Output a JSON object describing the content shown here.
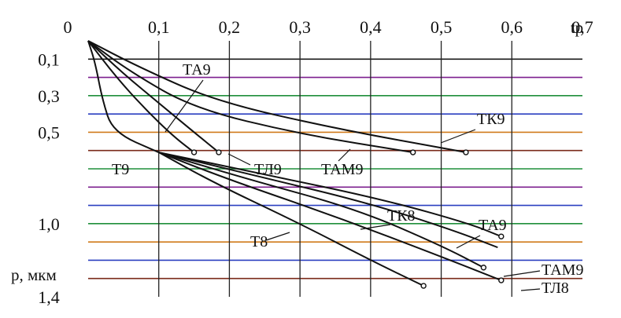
{
  "chart_data": {
    "type": "line",
    "title": "",
    "xlabel": "tp",
    "ylabel": "p, мкм",
    "x_axis_position": "top",
    "y_axis_inverted": true,
    "xlim": [
      0,
      0.7
    ],
    "ylim": [
      0,
      1.4
    ],
    "x_ticks": [
      {
        "value": 0,
        "label": "0"
      },
      {
        "value": 0.1,
        "label": "0,1"
      },
      {
        "value": 0.2,
        "label": "0,2"
      },
      {
        "value": 0.3,
        "label": "0,3"
      },
      {
        "value": 0.4,
        "label": "0,4"
      },
      {
        "value": 0.5,
        "label": "0,5"
      },
      {
        "value": 0.6,
        "label": "0,6"
      },
      {
        "value": 0.7,
        "label": "0,7"
      }
    ],
    "y_ticks": [
      {
        "value": 0.1,
        "label": "0,1"
      },
      {
        "value": 0.3,
        "label": "0,3"
      },
      {
        "value": 0.5,
        "label": "0,5"
      },
      {
        "value": 1.0,
        "label": "1,0"
      },
      {
        "value": 1.4,
        "label": "1,4"
      }
    ],
    "grid": {
      "vertical_at": [
        0.1,
        0.2,
        0.3,
        0.4,
        0.5,
        0.6
      ],
      "horizontal_at": [
        0.1,
        0.2,
        0.3,
        0.4,
        0.5,
        0.6,
        0.7,
        0.8,
        0.9,
        1.0,
        1.1,
        1.2,
        1.3
      ],
      "colors": [
        "#1a1a1a",
        "#7d1f8f",
        "#1f8f3a",
        "#2a3fc0",
        "#d07a1a",
        "#7a2a1a",
        "#1f8f3a",
        "#7d1f8f",
        "#2a3fc0",
        "#1f8f3a",
        "#d07a1a",
        "#2a3fc0",
        "#7a2a1a"
      ]
    },
    "series": [
      {
        "name": "Т9",
        "end_marker": false,
        "x": [
          0,
          0.01,
          0.02,
          0.035,
          0.1
        ],
        "y": [
          0,
          0.12,
          0.32,
          0.5,
          0.61
        ]
      },
      {
        "name": "ТА9",
        "end_marker": true,
        "x": [
          0,
          0.04,
          0.08,
          0.12,
          0.15
        ],
        "y": [
          0,
          0.2,
          0.37,
          0.52,
          0.61
        ]
      },
      {
        "name": "ТЛ9",
        "end_marker": true,
        "x": [
          0,
          0.05,
          0.1,
          0.15,
          0.185
        ],
        "y": [
          0,
          0.18,
          0.34,
          0.5,
          0.61
        ]
      },
      {
        "name": "ТАМ9",
        "end_marker": true,
        "x": [
          0,
          0.06,
          0.15,
          0.3,
          0.46
        ],
        "y": [
          0,
          0.17,
          0.37,
          0.51,
          0.61
        ]
      },
      {
        "name": "ТК9",
        "end_marker": true,
        "x": [
          0,
          0.07,
          0.18,
          0.35,
          0.535
        ],
        "y": [
          0,
          0.14,
          0.33,
          0.48,
          0.61
        ]
      },
      {
        "name": "Т8",
        "end_marker": true,
        "x": [
          0.1,
          0.18,
          0.3,
          0.4,
          0.475
        ],
        "y": [
          0.61,
          0.78,
          1.0,
          1.2,
          1.34
        ]
      },
      {
        "name": "ТЛ8",
        "end_marker": true,
        "x": [
          0.1,
          0.2,
          0.35,
          0.5,
          0.585
        ],
        "y": [
          0.61,
          0.76,
          0.96,
          1.18,
          1.31
        ]
      },
      {
        "name": "ТАМ9",
        "end_marker": true,
        "x": [
          0.1,
          0.22,
          0.38,
          0.5,
          0.56
        ],
        "y": [
          0.61,
          0.75,
          0.92,
          1.12,
          1.24
        ]
      },
      {
        "name": "ТА9",
        "end_marker": false,
        "x": [
          0.1,
          0.24,
          0.4,
          0.52,
          0.58
        ],
        "y": [
          0.61,
          0.74,
          0.89,
          1.04,
          1.13
        ]
      },
      {
        "name": "ТК8",
        "end_marker": true,
        "x": [
          0.1,
          0.25,
          0.42,
          0.54,
          0.585
        ],
        "y": [
          0.61,
          0.73,
          0.87,
          1.0,
          1.07
        ]
      }
    ]
  }
}
